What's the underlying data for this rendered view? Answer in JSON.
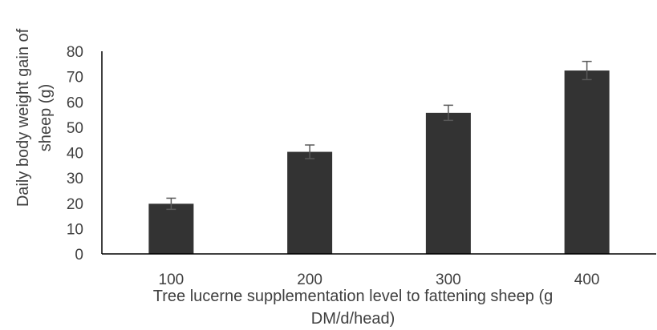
{
  "chart_data": {
    "type": "bar",
    "categories": [
      "100",
      "200",
      "300",
      "400"
    ],
    "values": [
      19.8,
      40.3,
      55.7,
      72.4
    ],
    "errors": [
      2.2,
      2.7,
      3.0,
      3.6
    ],
    "yticks": [
      "0",
      "10",
      "20",
      "30",
      "40",
      "50",
      "60",
      "70",
      "80"
    ],
    "ylim": [
      0,
      80
    ],
    "xlabel_lines": [
      "Tree lucerne supplementation level to fattening sheep (g",
      "DM/d/head)"
    ],
    "ylabel_lines": [
      "Daily body weight gain of",
      "sheep (g)"
    ],
    "grid": false,
    "colors": {
      "bar": "#333333",
      "axis": "#000000",
      "error_bar": "#595959",
      "text": "#404040"
    }
  }
}
